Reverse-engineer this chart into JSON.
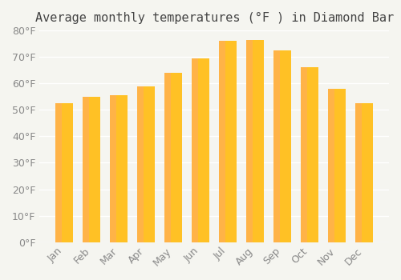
{
  "title": "Average monthly temperatures (°F ) in Diamond Bar",
  "months": [
    "Jan",
    "Feb",
    "Mar",
    "Apr",
    "May",
    "Jun",
    "Jul",
    "Aug",
    "Sep",
    "Oct",
    "Nov",
    "Dec"
  ],
  "values": [
    52.5,
    55.0,
    55.5,
    59.0,
    64.0,
    69.5,
    76.0,
    76.5,
    72.5,
    66.0,
    58.0,
    52.5
  ],
  "bar_color_top": "#FFC125",
  "bar_color_bottom": "#FFB347",
  "ylim": [
    0,
    80
  ],
  "yticks": [
    0,
    10,
    20,
    30,
    40,
    50,
    60,
    70,
    80
  ],
  "background_color": "#F5F5F0",
  "grid_color": "#FFFFFF",
  "title_fontsize": 11,
  "tick_fontsize": 9
}
